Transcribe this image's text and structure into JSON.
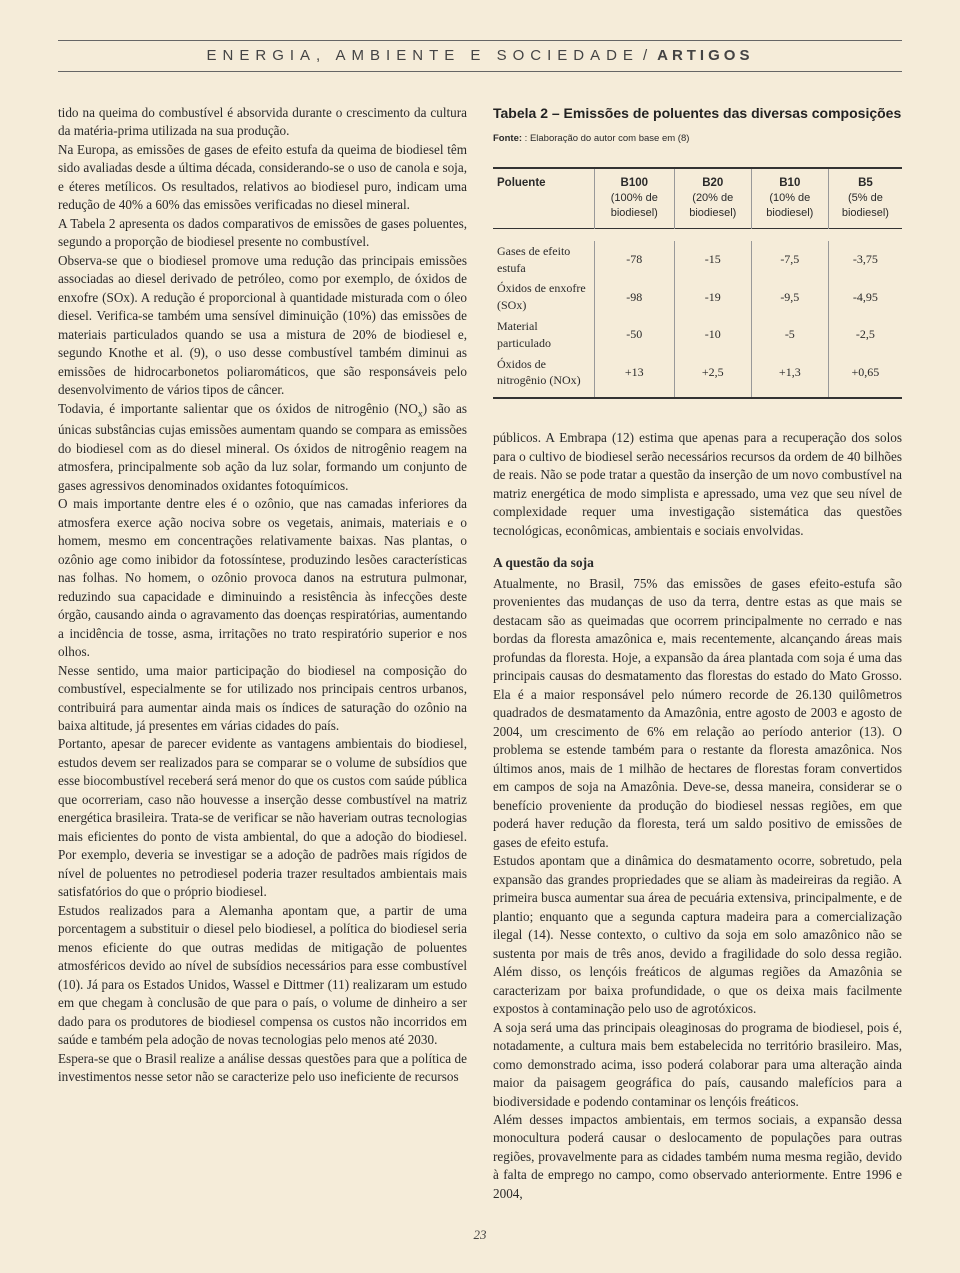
{
  "header": {
    "section": "ENERGIA, AMBIENTE E SOCIEDADE",
    "separator": "/",
    "type": "ARTIGOS"
  },
  "leftColumn": {
    "p1": "tido na queima do combustível é absorvida durante o crescimento da cultura da matéria-prima utilizada na sua produção.",
    "p2": "Na Europa, as emissões de gases de efeito estufa da queima de biodiesel têm sido avaliadas desde a última década, considerando-se o uso de canola e soja, e éteres metílicos. Os resultados, relativos ao biodiesel puro, indicam uma redução de 40% a 60% das emissões verificadas no diesel mineral.",
    "p3": "A Tabela 2 apresenta os dados comparativos de emissões de gases poluentes, segundo a proporção de biodiesel presente no combustível.",
    "p4": "Observa-se que o biodiesel promove uma redução das principais emissões associadas ao diesel derivado de petróleo, como por exemplo, de óxidos de enxofre (SOx). A redução é proporcional à quantidade misturada com o óleo diesel. Verifica-se também uma sensível diminuição (10%) das emissões de materiais particulados quando se usa a mistura de 20% de biodiesel e, segundo Knothe et al. (9), o uso desse combustível também diminui as emissões de hidrocarbonetos poliaromáticos, que são responsáveis pelo desenvolvimento de vários tipos de câncer.",
    "p5a": "Todavia, é importante salientar que os óxidos de nitrogênio (NO",
    "p5b": ") são as únicas substâncias cujas emissões aumentam quando se compara as emissões do biodiesel com as do diesel mineral. Os óxidos de nitrogênio reagem na atmosfera, principalmente sob ação da luz solar, formando um conjunto de gases agressivos denominados oxidantes fotoquímicos.",
    "p6": "O mais importante dentre eles é o ozônio, que nas camadas inferiores da atmosfera exerce ação nociva sobre os vegetais, animais, materiais e o homem, mesmo em concentrações relativamente baixas. Nas plantas, o ozônio age como inibidor da fotossíntese, produzindo lesões características nas folhas. No homem, o ozônio provoca danos na estrutura pulmonar, reduzindo sua capacidade e diminuindo a resistência às infecções deste órgão, causando ainda o agravamento das doenças respiratórias, aumentando a incidência de tosse, asma, irritações no trato respiratório superior e nos olhos.",
    "p7": "Nesse sentido, uma maior participação do biodiesel na composição do combustível, especialmente se for utilizado nos principais centros urbanos, contribuirá para aumentar ainda mais os índices de saturação do ozônio na baixa altitude, já presentes em várias cidades do país.",
    "p8": "Portanto, apesar de parecer evidente as vantagens ambientais do biodiesel, estudos devem ser realizados para se comparar se o volume de subsídios que esse biocombustível receberá será menor do que os custos com saúde pública que ocorreriam, caso não houvesse a inserção desse combustível na matriz energética brasileira. Trata-se de verificar se não haveriam outras tecnologias mais eficientes do ponto de vista ambiental, do que a adoção do biodiesel. Por exemplo, deveria se investigar se a adoção de padrões mais rígidos de nível de poluentes no petrodiesel poderia trazer resultados ambientais mais satisfatórios do que o próprio biodiesel.",
    "p9": "Estudos realizados para a Alemanha apontam que, a partir de uma porcentagem a substituir o diesel pelo biodiesel, a política do biodiesel seria menos eficiente do que outras medidas de mitigação de poluentes atmosféricos devido ao nível de subsídios necessários para esse combustível (10). Já para os Estados Unidos, Wassel e Dittmer (11) realizaram um estudo em que chegam à conclusão de que para o país, o volume de dinheiro a ser dado para os produtores de biodiesel compensa os custos não incorridos em saúde e também pela adoção de novas tecnologias pelo menos até 2030.",
    "p10": "Espera-se que o Brasil realize a análise dessas questões para que a política de investimentos nesse setor não se caracterize pelo uso ineficiente de recursos"
  },
  "table": {
    "title": "Tabela 2 – Emissões de poluentes das diversas composições",
    "sourceLabel": "Fonte:",
    "sourceText": " : Elaboração do autor com base em (8)",
    "headers": {
      "h0": "Poluente",
      "h1": "B100",
      "h1s": "(100% de biodiesel)",
      "h2": "B20",
      "h2s": "(20% de biodiesel)",
      "h3": "B10",
      "h3s": "(10% de biodiesel)",
      "h4": "B5",
      "h4s": "(5% de biodiesel)"
    },
    "rows": [
      {
        "label": "Gases de efeito estufa",
        "c1": "-78",
        "c2": "-15",
        "c3": "-7,5",
        "c4": "-3,75"
      },
      {
        "label": "Óxidos de enxofre (SOx)",
        "c1": "-98",
        "c2": "-19",
        "c3": "-9,5",
        "c4": "-4,95"
      },
      {
        "label": "Material particulado",
        "c1": "-50",
        "c2": "-10",
        "c3": "-5",
        "c4": "-2,5"
      },
      {
        "label": "Óxidos de nitrogênio (NOx)",
        "c1": "+13",
        "c2": "+2,5",
        "c3": "+1,3",
        "c4": "+0,65"
      }
    ]
  },
  "rightColumn": {
    "p1": "públicos. A Embrapa (12) estima que apenas para a recuperação dos solos para o cultivo de biodiesel serão necessários recursos da ordem de 40 bilhões de reais. Não se pode tratar a questão da inserção de um novo combustível na matriz energética de modo simplista e apressado, uma vez que seu nível de complexidade requer uma investigação sistemática das questões tecnológicas, econômicas, ambientais e sociais envolvidas.",
    "sectionHead": "A questão da soja",
    "p2": "Atualmente, no Brasil, 75% das emissões de gases efeito-estufa são provenientes das mudanças de uso da terra, dentre estas as que mais se destacam são as queimadas que ocorrem principalmente no cerrado e nas bordas da floresta amazônica e, mais recentemente, alcançando áreas mais profundas da floresta. Hoje, a expansão da área plantada com soja é uma das principais causas do desmatamento das florestas do estado do Mato Grosso. Ela é a maior responsável pelo número recorde de 26.130 quilômetros quadrados de desmatamento da Amazônia, entre agosto de 2003 e agosto de 2004, um crescimento de 6% em relação ao período anterior (13). O problema se estende também para o restante da floresta amazônica. Nos últimos anos, mais de 1 milhão de hectares de florestas foram convertidos em campos de soja na Amazônia. Deve-se, dessa maneira, considerar se o benefício proveniente da produção do biodiesel nessas regiões, em que poderá haver redução da floresta, terá um saldo positivo de emissões de gases de efeito estufa.",
    "p3": "Estudos apontam que a dinâmica do desmatamento ocorre, sobretudo, pela expansão das grandes propriedades que se aliam às madeireiras da região. A primeira busca aumentar sua área de pecuária extensiva, principalmente, e de plantio; enquanto que a segunda captura madeira para a comercialização ilegal (14). Nesse contexto, o cultivo da soja em solo amazônico não se sustenta por mais de três anos, devido a fragilidade do solo dessa região. Além disso, os lençóis freáticos de algumas regiões da Amazônia se caracterizam por baixa profundidade, o que os deixa mais facilmente expostos à contaminação pelo uso de agrotóxicos.",
    "p4": "A soja será uma das principais oleaginosas do programa de biodiesel, pois é, notadamente, a cultura mais bem estabelecida no território brasileiro. Mas, como demonstrado acima, isso poderá colaborar para uma alteração ainda maior da paisagem geográfica do país, causando malefícios para a biodiversidade e podendo contaminar os lençóis freáticos.",
    "p5": "Além desses impactos ambientais, em termos sociais, a expansão dessa monocultura poderá causar o deslocamento de populações para outras regiões, provavelmente para as cidades também numa mesma região, devido à falta de emprego no campo, como observado anteriormente. Entre 1996 e 2004,"
  },
  "pageNumber": "23"
}
